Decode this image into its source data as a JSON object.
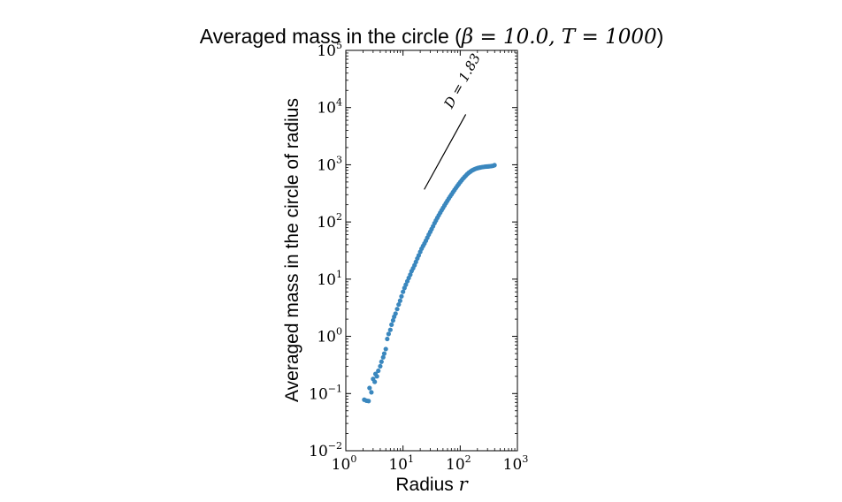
{
  "chart_data": {
    "type": "scatter",
    "title_text": "Averaged mass in the circle (",
    "title_math": "β = 10.0, T = 1000",
    "title_close": ")",
    "xlabel_text": "Radius ",
    "xlabel_math": "r",
    "ylabel": "Averaged mass in the circle of radius",
    "x_scale": "log",
    "y_scale": "log",
    "xlim": [
      1,
      1000
    ],
    "ylim": [
      0.01,
      100000
    ],
    "x_ticks": [
      {
        "base": "10",
        "exp": "0",
        "value": 1
      },
      {
        "base": "10",
        "exp": "1",
        "value": 10
      },
      {
        "base": "10",
        "exp": "2",
        "value": 100
      },
      {
        "base": "10",
        "exp": "3",
        "value": 1000
      }
    ],
    "y_ticks": [
      {
        "base": "10",
        "exp": "−2",
        "value": 0.01
      },
      {
        "base": "10",
        "exp": "−1",
        "value": 0.1
      },
      {
        "base": "10",
        "exp": "0",
        "value": 1
      },
      {
        "base": "10",
        "exp": "1",
        "value": 10
      },
      {
        "base": "10",
        "exp": "2",
        "value": 100
      },
      {
        "base": "10",
        "exp": "3",
        "value": 1000
      },
      {
        "base": "10",
        "exp": "4",
        "value": 10000
      },
      {
        "base": "10",
        "exp": "5",
        "value": 100000
      }
    ],
    "grid": false,
    "marker_color": "#3a87be",
    "reference_line": {
      "label": "D = 1.83",
      "slope": 1.83,
      "x": [
        23.5,
        125
      ],
      "y": [
        370,
        7600
      ]
    },
    "series": [
      {
        "x": [
          2.1,
          2.3,
          2.5,
          2.6,
          2.8,
          3.0,
          3.2,
          3.3,
          3.5,
          3.7,
          4.0,
          4.2,
          4.5,
          4.7,
          5.0,
          5.3,
          5.6,
          6.0,
          6.3,
          6.7,
          7.0,
          7.4,
          7.9,
          8.4,
          8.9,
          9.4,
          10.0,
          10.6,
          11.2,
          11.9,
          12.6,
          13.4,
          14.1,
          15.0,
          15.9,
          16.8,
          17.8,
          18.8,
          20.0,
          21.1,
          22.4,
          23.7,
          25.1,
          26.6,
          28.2,
          29.9,
          31.6,
          33.5,
          35.5,
          37.6,
          39.8,
          42.2,
          44.7,
          47.3,
          50.1,
          53.1,
          56.2,
          59.6,
          63.1,
          66.8,
          70.8,
          75.0,
          79.4,
          84.1,
          89.1,
          94.4,
          100,
          106,
          112,
          119,
          126,
          133,
          141,
          150,
          158,
          168,
          178,
          188,
          200,
          211,
          224,
          237,
          251,
          266,
          282,
          299,
          316,
          335,
          355,
          376,
          398
        ],
        "y": [
          0.078,
          0.075,
          0.074,
          0.125,
          0.105,
          0.18,
          0.16,
          0.22,
          0.2,
          0.25,
          0.3,
          0.36,
          0.43,
          0.5,
          0.6,
          0.9,
          1.1,
          1.3,
          1.6,
          1.9,
          2.2,
          2.5,
          3.0,
          3.6,
          4.2,
          5.0,
          6.0,
          7.0,
          8.0,
          9.2,
          10.5,
          12.0,
          13.8,
          15.5,
          17.5,
          20,
          23,
          26,
          30,
          34,
          38,
          42,
          47,
          53,
          60,
          67,
          75,
          84,
          95,
          106,
          118,
          131,
          145,
          160,
          176,
          194,
          213,
          234,
          256,
          280,
          305,
          333,
          362,
          393,
          426,
          460,
          497,
          535,
          573,
          612,
          650,
          688,
          724,
          757,
          787,
          813,
          836,
          856,
          872,
          885,
          897,
          907,
          915,
          922,
          928,
          933,
          938,
          944,
          951,
          960,
          985
        ]
      }
    ]
  }
}
